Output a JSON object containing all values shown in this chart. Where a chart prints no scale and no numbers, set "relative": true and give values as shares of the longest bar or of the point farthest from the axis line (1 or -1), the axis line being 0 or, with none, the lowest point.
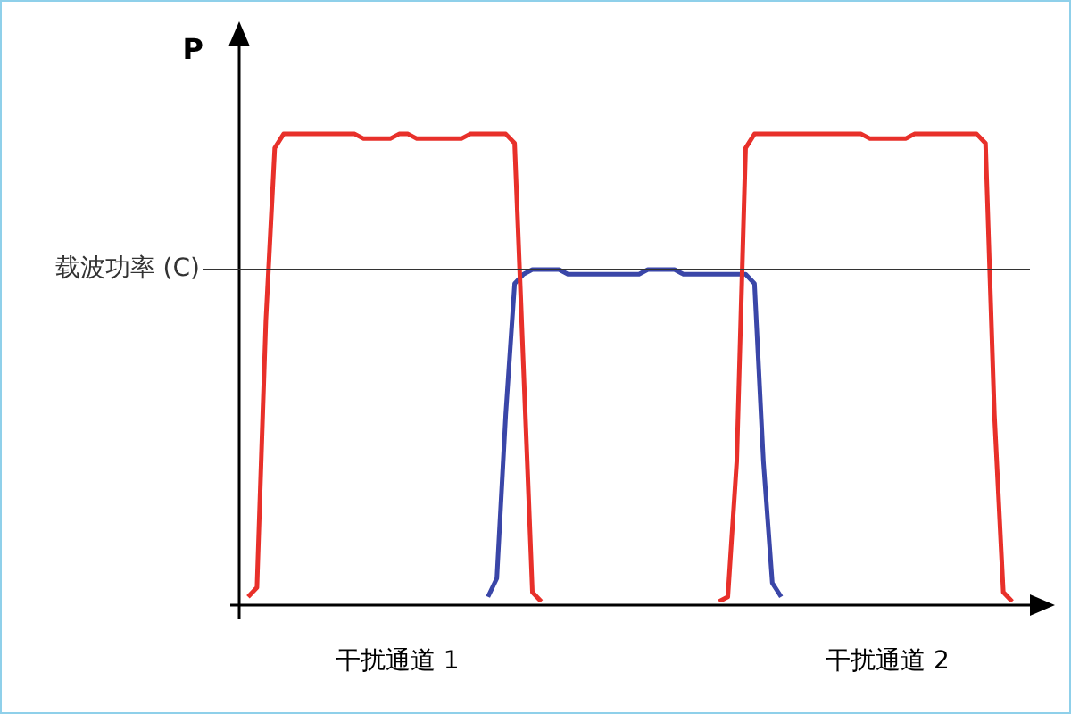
{
  "chart_data": {
    "type": "line",
    "relative": true,
    "ylabel": "P",
    "legend": false,
    "marker": "none",
    "categories": [
      null,
      null,
      null,
      null,
      null,
      null,
      null,
      null,
      null,
      null,
      null,
      null,
      null,
      null,
      null,
      null,
      null,
      null,
      null,
      null,
      null,
      null,
      null,
      null,
      null,
      null,
      null,
      null,
      null,
      null,
      null,
      null,
      null,
      null,
      null,
      null,
      null,
      null,
      null,
      null,
      null,
      null,
      null,
      null,
      null,
      null,
      null,
      null,
      null,
      null,
      null,
      null,
      null,
      null,
      null,
      null,
      null,
      null,
      null,
      null,
      null,
      null,
      null,
      null,
      null,
      null,
      null,
      null,
      null,
      null,
      null,
      null,
      null,
      null,
      null,
      null,
      null,
      null,
      null,
      null,
      null,
      null,
      null,
      null,
      null,
      null,
      null,
      null,
      null,
      null
    ],
    "series": [
      {
        "color": "#e8302a",
        "values": [
          null,
          0.01,
          0.03,
          0.6,
          0.97,
          1.0,
          1.0,
          1.0,
          1.0,
          1.0,
          1.0,
          1.0,
          1.0,
          1.0,
          0.99,
          0.99,
          0.99,
          0.99,
          1.0,
          1.0,
          0.99,
          0.99,
          0.99,
          0.99,
          0.99,
          0.99,
          1.0,
          1.0,
          1.0,
          1.0,
          1.0,
          0.98,
          0.5,
          0.02,
          0,
          null,
          null,
          null,
          null,
          null,
          null,
          null,
          null,
          null,
          null,
          null,
          null,
          null,
          null,
          null,
          null,
          null,
          null,
          null,
          0,
          0.01,
          0.3,
          0.97,
          1.0,
          1.0,
          1.0,
          1.0,
          1.0,
          1.0,
          1.0,
          1.0,
          1.0,
          1.0,
          1.0,
          1.0,
          1.0,
          0.99,
          0.99,
          0.99,
          0.99,
          0.99,
          1.0,
          1.0,
          1.0,
          1.0,
          1.0,
          1.0,
          1.0,
          1.0,
          0.98,
          0.4,
          0.02,
          0,
          null,
          null
        ]
      },
      {
        "color": "#3a46a8",
        "values": [
          null,
          null,
          null,
          null,
          null,
          null,
          null,
          null,
          null,
          null,
          null,
          null,
          null,
          null,
          null,
          null,
          null,
          null,
          null,
          null,
          null,
          null,
          null,
          null,
          null,
          null,
          null,
          null,
          0.01,
          0.05,
          0.4,
          0.68,
          0.7,
          0.71,
          0.71,
          0.71,
          0.71,
          0.7,
          0.7,
          0.7,
          0.7,
          0.7,
          0.7,
          0.7,
          0.7,
          0.7,
          0.71,
          0.71,
          0.71,
          0.71,
          0.7,
          0.7,
          0.7,
          0.7,
          0.7,
          0.7,
          0.7,
          0.7,
          0.68,
          0.3,
          0.04,
          0.01,
          null,
          null,
          null,
          null,
          null,
          null,
          null,
          null,
          null,
          null,
          null,
          null,
          null,
          null,
          null,
          null,
          null,
          null,
          null,
          null,
          null,
          null,
          null,
          null,
          null,
          null,
          null,
          null
        ]
      }
    ],
    "ref_lines": [
      {
        "axis": "y",
        "value": 0.71,
        "label": "载波功率 (C)",
        "color": "#333333"
      }
    ],
    "annotations": [
      "干扰通道 1",
      "干扰通道 2"
    ]
  }
}
